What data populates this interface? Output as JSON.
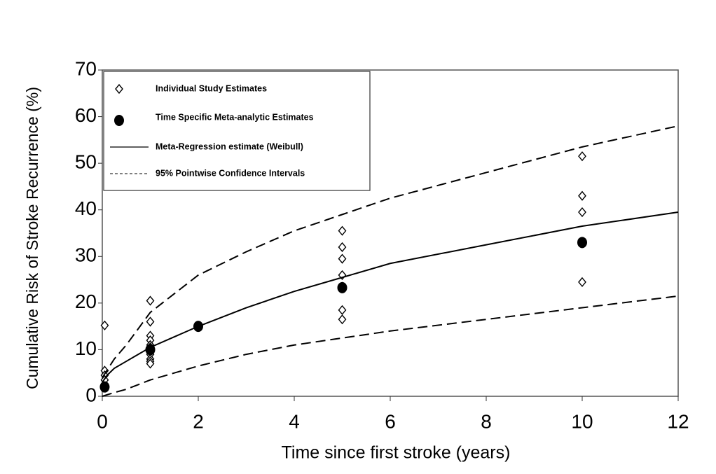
{
  "chart_data": {
    "type": "line",
    "xlabel": "Time since first stroke (years)",
    "ylabel": "Cumulative Risk of Stroke Recurrence (%)",
    "xlim": [
      0,
      12
    ],
    "xticks": [
      0,
      2,
      4,
      6,
      8,
      10,
      12
    ],
    "ylim": [
      0,
      70
    ],
    "yticks": [
      0,
      10,
      20,
      30,
      40,
      50,
      60,
      70
    ],
    "series": [
      {
        "name": "Individual Study Estimates",
        "type": "scatter",
        "marker": "diamond-open",
        "color": "#000000",
        "x": [
          0.05,
          0.05,
          0.05,
          0.05,
          1,
          1,
          1,
          1,
          1,
          1,
          1,
          1,
          1,
          1,
          5,
          5,
          5,
          5,
          5,
          5,
          5,
          10,
          10,
          10,
          10
        ],
        "values": [
          15.2,
          5.5,
          4.5,
          3.5,
          20.5,
          16,
          13,
          12,
          11,
          10.5,
          9,
          8,
          7.5,
          7,
          35.5,
          32,
          29.5,
          26,
          23.5,
          18.5,
          16.5,
          51.5,
          43,
          39.5,
          24.5
        ]
      },
      {
        "name": "Time Specific Meta-analytic Estimates",
        "type": "scatter",
        "marker": "circle-filled",
        "color": "#000000",
        "x": [
          0.05,
          1,
          2,
          5,
          10
        ],
        "values": [
          2,
          10,
          15,
          23.3,
          33
        ]
      },
      {
        "name": "Meta-Regression estimate (Weibull)",
        "type": "line",
        "dash": "solid",
        "color": "#000000",
        "x": [
          0,
          0.1,
          0.25,
          0.5,
          1,
          2,
          3,
          4,
          5,
          6,
          8,
          10,
          12
        ],
        "values": [
          3,
          4.5,
          6,
          7.5,
          10.5,
          15,
          19,
          22.5,
          25.5,
          28.5,
          32.5,
          36.5,
          39.5
        ]
      },
      {
        "name": "95% Pointwise Confidence Intervals",
        "type": "band",
        "dash": "dashed",
        "color": "#000000",
        "x": [
          0,
          0.25,
          0.5,
          1,
          2,
          3,
          4,
          5,
          6,
          8,
          10,
          12
        ],
        "upper": [
          4,
          8,
          11,
          18,
          26,
          31,
          35.5,
          39,
          42.5,
          48,
          53.5,
          58
        ],
        "lower": [
          0,
          0.8,
          1.5,
          3.5,
          6.5,
          9,
          11,
          12.5,
          14,
          16.5,
          19,
          21.5
        ]
      }
    ]
  }
}
